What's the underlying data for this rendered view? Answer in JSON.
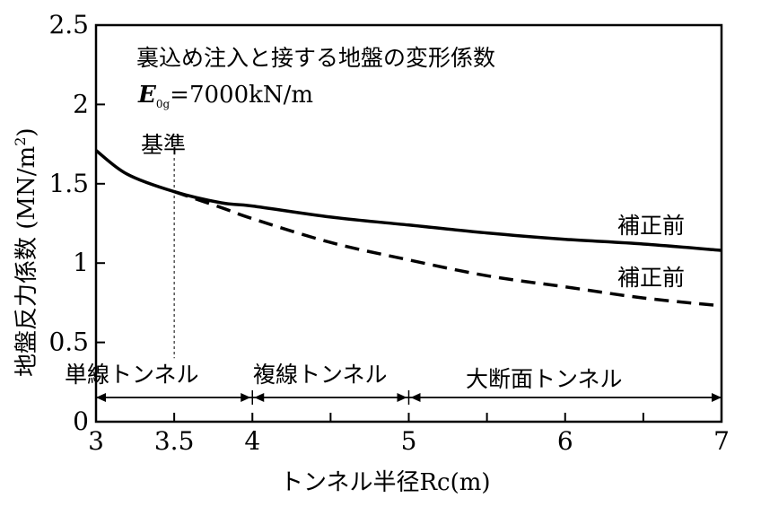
{
  "chart_data": {
    "type": "line",
    "title": "裏込め注入と接する地盤の変形係数",
    "subtitle_symbol": "E",
    "subtitle_subscript": "0g",
    "subtitle_rest": "=7000kN/m",
    "xlabel": "トンネル半径Rc(m)",
    "ylabel": "地盤反力係数 (MN/m",
    "ylabel_sup": "2",
    "ylabel_close": ")",
    "xlim": [
      3,
      7
    ],
    "ylim": [
      0,
      2.5
    ],
    "x_ticks": [
      3,
      3.5,
      4,
      5,
      6,
      7
    ],
    "x_tick_labels": [
      "3",
      "3.5",
      "4",
      "5",
      "6",
      "7"
    ],
    "x_minor_ticks": [
      4.5,
      5.5,
      6.5
    ],
    "y_ticks": [
      0,
      0.5,
      1,
      1.5,
      2,
      2.5
    ],
    "y_tick_labels": [
      "0",
      "0.5",
      "1",
      "1.5",
      "2",
      "2.5"
    ],
    "series": [
      {
        "name": "補正前",
        "style": "solid",
        "x": [
          3.0,
          3.2,
          3.5,
          3.8,
          4.0,
          4.5,
          5.0,
          5.5,
          6.0,
          6.5,
          7.0
        ],
        "y": [
          1.71,
          1.56,
          1.45,
          1.38,
          1.36,
          1.29,
          1.24,
          1.19,
          1.15,
          1.12,
          1.08
        ]
      },
      {
        "name": "補正前",
        "style": "dashed",
        "x": [
          3.5,
          3.8,
          4.0,
          4.5,
          5.0,
          5.5,
          6.0,
          6.5,
          7.0
        ],
        "y": [
          1.45,
          1.35,
          1.28,
          1.13,
          1.02,
          0.92,
          0.85,
          0.78,
          0.73
        ]
      }
    ],
    "reference": {
      "label": "基準",
      "x": 3.5
    },
    "ranges": [
      {
        "label": "単線トンネル",
        "from": 3,
        "to": 4
      },
      {
        "label": "複線トンネル",
        "from": 4,
        "to": 5
      },
      {
        "label": "大断面トンネル",
        "from": 5,
        "to": 7
      }
    ]
  }
}
